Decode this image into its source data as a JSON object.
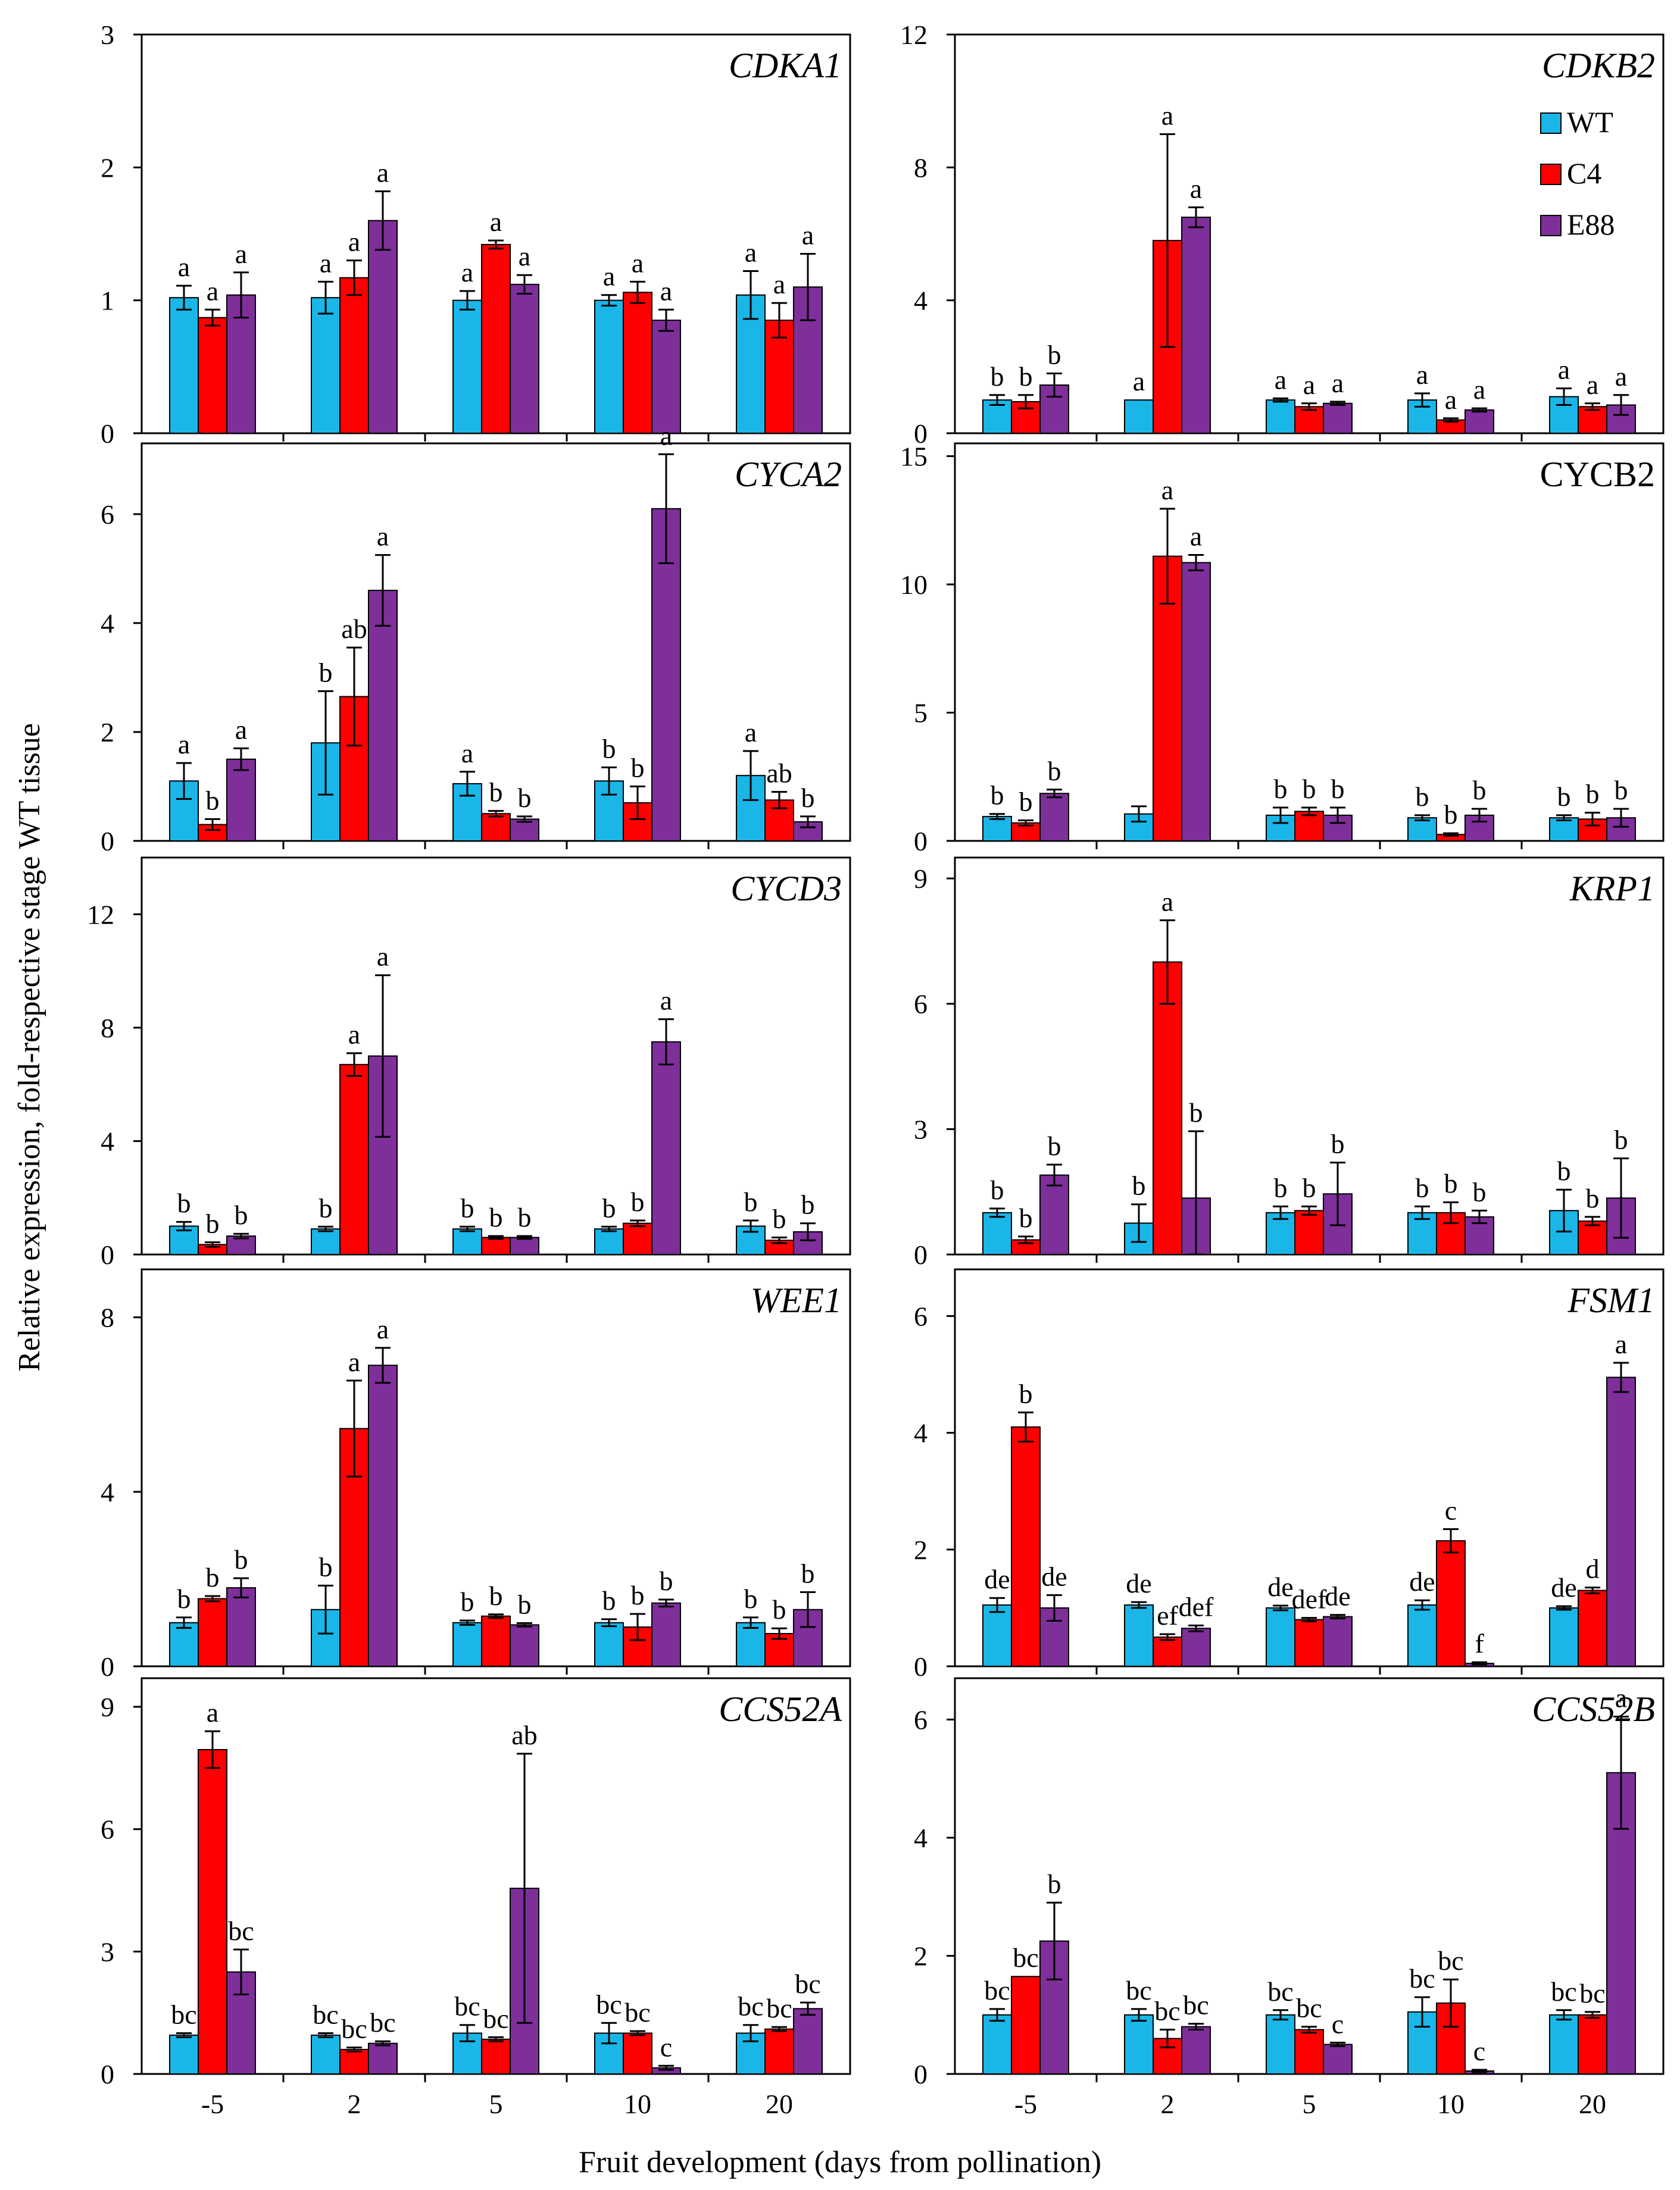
{
  "figure": {
    "ylabel": "Relative expression, fold-respective stage WT tissue",
    "xlabel": "Fruit development  (days from pollination)"
  },
  "legend": {
    "items": [
      {
        "name": "WT",
        "color": "#1AB6E8"
      },
      {
        "name": "C4",
        "color": "#FF0000"
      },
      {
        "name": "E88",
        "color": "#7E2F9A"
      }
    ]
  },
  "chart_data": [
    {
      "type": "bar",
      "title": "CDKA1",
      "italic": true,
      "categories": [
        "-5",
        "2",
        "5",
        "10",
        "20"
      ],
      "ylim": [
        0,
        3
      ],
      "yticks": [
        "0",
        "1",
        "2",
        "3"
      ],
      "series": [
        {
          "name": "WT",
          "values": [
            1.02,
            1.02,
            1.0,
            1.0,
            1.04
          ],
          "errors": [
            0.09,
            0.12,
            0.07,
            0.04,
            0.18
          ],
          "labels": [
            "a",
            "a",
            "a",
            "a",
            "a"
          ]
        },
        {
          "name": "C4",
          "values": [
            0.87,
            1.17,
            1.42,
            1.06,
            0.85
          ],
          "errors": [
            0.06,
            0.13,
            0.03,
            0.08,
            0.13
          ],
          "labels": [
            "a",
            "a",
            "a",
            "a",
            "a"
          ]
        },
        {
          "name": "E88",
          "values": [
            1.04,
            1.6,
            1.12,
            0.85,
            1.1
          ],
          "errors": [
            0.17,
            0.22,
            0.07,
            0.08,
            0.25
          ],
          "labels": [
            "a",
            "a",
            "a",
            "a",
            "a"
          ]
        }
      ]
    },
    {
      "type": "bar",
      "title": "CDKB2",
      "italic": true,
      "categories": [
        "-5",
        "2",
        "5",
        "10",
        "20"
      ],
      "ylim": [
        0,
        12
      ],
      "yticks": [
        "0",
        "4",
        "8",
        "12"
      ],
      "series": [
        {
          "name": "WT",
          "values": [
            1.0,
            1.0,
            1.0,
            1.0,
            1.1
          ],
          "errors": [
            0.15,
            0.0,
            0.05,
            0.2,
            0.25
          ],
          "labels": [
            "b",
            "a",
            "a",
            "a",
            "a"
          ]
        },
        {
          "name": "C4",
          "values": [
            0.95,
            5.8,
            0.8,
            0.4,
            0.8
          ],
          "errors": [
            0.2,
            3.2,
            0.1,
            0.05,
            0.1
          ],
          "labels": [
            "b",
            "a",
            "a",
            "a",
            "a"
          ]
        },
        {
          "name": "E88",
          "values": [
            1.45,
            6.5,
            0.9,
            0.7,
            0.85
          ],
          "errors": [
            0.35,
            0.3,
            0.05,
            0.05,
            0.3
          ],
          "labels": [
            "b",
            "a",
            "a",
            "a",
            "a"
          ]
        }
      ]
    },
    {
      "type": "bar",
      "title": "CYCA2",
      "italic": true,
      "categories": [
        "-5",
        "2",
        "5",
        "10",
        "20"
      ],
      "ylim": [
        0,
        7.3
      ],
      "yticks": [
        "0",
        "2",
        "4",
        "6"
      ],
      "series": [
        {
          "name": "WT",
          "values": [
            1.1,
            1.8,
            1.05,
            1.1,
            1.2
          ],
          "errors": [
            0.33,
            0.95,
            0.22,
            0.25,
            0.45
          ],
          "labels": [
            "a",
            "b",
            "a",
            "b",
            "a"
          ]
        },
        {
          "name": "C4",
          "values": [
            0.3,
            2.65,
            0.5,
            0.7,
            0.75
          ],
          "errors": [
            0.1,
            0.9,
            0.05,
            0.3,
            0.15
          ],
          "labels": [
            "b",
            "ab",
            "b",
            "b",
            "ab"
          ]
        },
        {
          "name": "E88",
          "values": [
            1.5,
            4.6,
            0.4,
            6.1,
            0.35
          ],
          "errors": [
            0.2,
            0.65,
            0.05,
            1.0,
            0.1
          ],
          "labels": [
            "a",
            "a",
            "b",
            "a",
            "b"
          ]
        }
      ]
    },
    {
      "type": "bar",
      "title": "CYCB2",
      "italic": false,
      "categories": [
        "-5",
        "2",
        "5",
        "10",
        "20"
      ],
      "ylim": [
        0,
        15.5
      ],
      "yticks": [
        "0",
        "5",
        "10",
        "15"
      ],
      "series": [
        {
          "name": "WT",
          "values": [
            0.95,
            1.05,
            1.0,
            0.9,
            0.9
          ],
          "errors": [
            0.1,
            0.3,
            0.3,
            0.1,
            0.1
          ],
          "labels": [
            "b",
            "",
            "b",
            "b",
            "b"
          ]
        },
        {
          "name": "C4",
          "values": [
            0.7,
            11.1,
            1.15,
            0.25,
            0.85
          ],
          "errors": [
            0.1,
            1.85,
            0.15,
            0.05,
            0.25
          ],
          "labels": [
            "b",
            "a",
            "b",
            "b",
            "b"
          ]
        },
        {
          "name": "E88",
          "values": [
            1.85,
            10.85,
            1.0,
            1.0,
            0.9
          ],
          "errors": [
            0.15,
            0.3,
            0.3,
            0.25,
            0.35
          ],
          "labels": [
            "b",
            "a",
            "b",
            "b",
            "b"
          ]
        }
      ]
    },
    {
      "type": "bar",
      "title": "CYCD3",
      "italic": true,
      "categories": [
        "-5",
        "2",
        "5",
        "10",
        "20"
      ],
      "ylim": [
        0,
        14
      ],
      "yticks": [
        "0",
        "4",
        "8",
        "12"
      ],
      "series": [
        {
          "name": "WT",
          "values": [
            1.0,
            0.9,
            0.9,
            0.9,
            1.0
          ],
          "errors": [
            0.15,
            0.08,
            0.08,
            0.08,
            0.2
          ],
          "labels": [
            "b",
            "b",
            "b",
            "b",
            "b"
          ]
        },
        {
          "name": "C4",
          "values": [
            0.35,
            6.7,
            0.6,
            1.1,
            0.5
          ],
          "errors": [
            0.08,
            0.4,
            0.05,
            0.1,
            0.1
          ],
          "labels": [
            "b",
            "a",
            "b",
            "b",
            "b"
          ]
        },
        {
          "name": "E88",
          "values": [
            0.65,
            7.0,
            0.6,
            7.5,
            0.8
          ],
          "errors": [
            0.08,
            2.85,
            0.05,
            0.8,
            0.3
          ],
          "labels": [
            "b",
            "a",
            "b",
            "a",
            "b"
          ]
        }
      ]
    },
    {
      "type": "bar",
      "title": "KRP1",
      "italic": true,
      "categories": [
        "-5",
        "2",
        "5",
        "10",
        "20"
      ],
      "ylim": [
        0,
        9.5
      ],
      "yticks": [
        "0",
        "3",
        "6",
        "9"
      ],
      "series": [
        {
          "name": "WT",
          "values": [
            1.0,
            0.75,
            1.0,
            1.0,
            1.05
          ],
          "errors": [
            0.1,
            0.45,
            0.15,
            0.15,
            0.5
          ],
          "labels": [
            "b",
            "b",
            "b",
            "b",
            "b"
          ]
        },
        {
          "name": "C4",
          "values": [
            0.35,
            7.0,
            1.05,
            1.0,
            0.8
          ],
          "errors": [
            0.08,
            1.0,
            0.1,
            0.25,
            0.1
          ],
          "labels": [
            "b",
            "a",
            "b",
            "b",
            "b"
          ]
        },
        {
          "name": "E88",
          "values": [
            1.9,
            1.35,
            1.45,
            0.9,
            1.35
          ],
          "errors": [
            0.25,
            1.6,
            0.75,
            0.15,
            0.95
          ],
          "labels": [
            "b",
            "b",
            "b",
            "b",
            "b"
          ]
        }
      ]
    },
    {
      "type": "bar",
      "title": "WEE1",
      "italic": true,
      "categories": [
        "-5",
        "2",
        "5",
        "10",
        "20"
      ],
      "ylim": [
        0,
        9.1
      ],
      "yticks": [
        "0",
        "4",
        "8"
      ],
      "series": [
        {
          "name": "WT",
          "values": [
            1.0,
            1.3,
            1.0,
            1.0,
            1.0
          ],
          "errors": [
            0.12,
            0.55,
            0.05,
            0.08,
            0.12
          ],
          "labels": [
            "b",
            "b",
            "b",
            "b",
            "b"
          ]
        },
        {
          "name": "C4",
          "values": [
            1.55,
            5.45,
            1.15,
            0.9,
            0.75
          ],
          "errors": [
            0.06,
            1.1,
            0.04,
            0.3,
            0.12
          ],
          "labels": [
            "b",
            "a",
            "b",
            "b",
            "b"
          ]
        },
        {
          "name": "E88",
          "values": [
            1.8,
            6.9,
            0.95,
            1.45,
            1.3
          ],
          "errors": [
            0.22,
            0.4,
            0.04,
            0.08,
            0.4
          ],
          "labels": [
            "b",
            "a",
            "b",
            "b",
            "b"
          ]
        }
      ]
    },
    {
      "type": "bar",
      "title": "FSM1",
      "italic": true,
      "categories": [
        "-5",
        "2",
        "5",
        "10",
        "20"
      ],
      "ylim": [
        0,
        6.8
      ],
      "yticks": [
        "0",
        "2",
        "4",
        "6"
      ],
      "series": [
        {
          "name": "WT",
          "values": [
            1.05,
            1.05,
            1.0,
            1.05,
            1.0
          ],
          "errors": [
            0.12,
            0.05,
            0.04,
            0.08,
            0.03
          ],
          "labels": [
            "de",
            "de",
            "de",
            "de",
            "de"
          ]
        },
        {
          "name": "C4",
          "values": [
            4.1,
            0.5,
            0.8,
            2.15,
            1.3
          ],
          "errors": [
            0.25,
            0.05,
            0.03,
            0.2,
            0.05
          ],
          "labels": [
            "b",
            "ef",
            "def",
            "c",
            "d"
          ]
        },
        {
          "name": "E88",
          "values": [
            1.0,
            0.65,
            0.85,
            0.05,
            4.95
          ],
          "errors": [
            0.22,
            0.05,
            0.03,
            0.02,
            0.25
          ],
          "labels": [
            "de",
            "def",
            "de",
            "f",
            "a"
          ]
        }
      ]
    },
    {
      "type": "bar",
      "title": "CCS52A",
      "italic": true,
      "categories": [
        "-5",
        "2",
        "5",
        "10",
        "20"
      ],
      "ylim": [
        0,
        9.7
      ],
      "yticks": [
        "0",
        "3",
        "6",
        "9"
      ],
      "series": [
        {
          "name": "WT",
          "values": [
            0.95,
            0.95,
            1.0,
            1.0,
            1.0
          ],
          "errors": [
            0.05,
            0.05,
            0.2,
            0.25,
            0.2
          ],
          "labels": [
            "bc",
            "bc",
            "bc",
            "bc",
            "bc"
          ]
        },
        {
          "name": "C4",
          "values": [
            7.95,
            0.6,
            0.85,
            1.0,
            1.1
          ],
          "errors": [
            0.45,
            0.05,
            0.05,
            0.05,
            0.05
          ],
          "labels": [
            "a",
            "bc",
            "bc",
            "bc",
            "bc"
          ]
        },
        {
          "name": "E88",
          "values": [
            2.5,
            0.75,
            4.55,
            0.15,
            1.6
          ],
          "errors": [
            0.55,
            0.05,
            3.3,
            0.05,
            0.15
          ],
          "labels": [
            "bc",
            "bc",
            "ab",
            "c",
            "bc"
          ]
        }
      ]
    },
    {
      "type": "bar",
      "title": "CCS52B",
      "italic": true,
      "categories": [
        "-5",
        "2",
        "5",
        "10",
        "20"
      ],
      "ylim": [
        0,
        6.7
      ],
      "yticks": [
        "0",
        "2",
        "4",
        "6"
      ],
      "series": [
        {
          "name": "WT",
          "values": [
            1.0,
            1.0,
            1.0,
            1.05,
            1.0
          ],
          "errors": [
            0.1,
            0.1,
            0.08,
            0.25,
            0.08
          ],
          "labels": [
            "bc",
            "bc",
            "bc",
            "bc",
            "bc"
          ]
        },
        {
          "name": "C4",
          "values": [
            1.65,
            0.6,
            0.75,
            1.2,
            1.0
          ],
          "errors": [
            0.0,
            0.15,
            0.05,
            0.4,
            0.05
          ],
          "labels": [
            "bc",
            "bc",
            "bc",
            "bc",
            "bc"
          ]
        },
        {
          "name": "E88",
          "values": [
            2.25,
            0.8,
            0.5,
            0.05,
            5.1
          ],
          "errors": [
            0.65,
            0.05,
            0.03,
            0.02,
            0.95
          ],
          "labels": [
            "b",
            "bc",
            "c",
            "c",
            "a"
          ]
        }
      ]
    }
  ]
}
